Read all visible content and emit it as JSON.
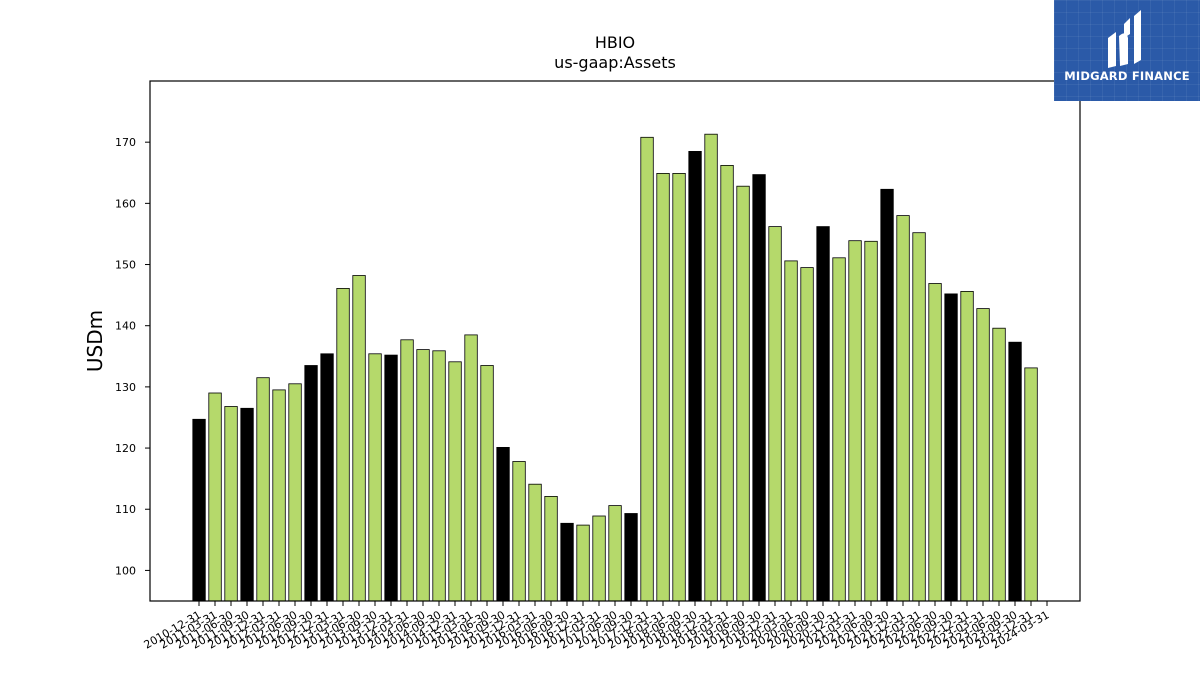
{
  "chart_data": {
    "type": "bar",
    "title": "HBIO",
    "subtitle": "us-gaap:Assets",
    "xlabel": "",
    "ylabel": "USDm",
    "ylim": [
      95,
      180
    ],
    "yticks": [
      100,
      110,
      120,
      130,
      140,
      150,
      160,
      170
    ],
    "grid": false,
    "colors": {
      "quarter": "#b5d96b",
      "year_end": "#000000",
      "edge": "#000000"
    },
    "categories": [
      "2010-12-31",
      "2011-03-31",
      "2011-06-30",
      "2011-09-30",
      "2011-12-31",
      "2012-03-31",
      "2012-06-30",
      "2012-09-30",
      "2012-12-31",
      "2013-03-31",
      "2013-06-30",
      "2013-09-30",
      "2013-12-31",
      "2014-03-31",
      "2014-06-30",
      "2014-09-30",
      "2014-12-31",
      "2015-03-31",
      "2015-06-30",
      "2015-09-30",
      "2015-12-31",
      "2016-03-31",
      "2016-06-30",
      "2016-09-30",
      "2016-12-31",
      "2017-03-31",
      "2017-06-30",
      "2017-09-30",
      "2017-12-31",
      "2018-03-31",
      "2018-06-30",
      "2018-09-30",
      "2018-12-31",
      "2019-03-31",
      "2019-06-30",
      "2019-09-30",
      "2019-12-31",
      "2020-03-31",
      "2020-06-30",
      "2020-09-30",
      "2020-12-31",
      "2021-03-31",
      "2021-06-30",
      "2021-09-30",
      "2021-12-31",
      "2022-03-31",
      "2022-06-30",
      "2022-09-30",
      "2022-12-31",
      "2023-03-31",
      "2023-06-30",
      "2023-09-30",
      "2023-12-31",
      "2024-03-31"
    ],
    "values": [
      124.7,
      129.0,
      126.8,
      126.5,
      131.5,
      129.5,
      130.5,
      133.5,
      135.4,
      146.1,
      148.2,
      135.4,
      135.2,
      137.7,
      136.1,
      135.9,
      134.1,
      138.5,
      133.5,
      120.1,
      117.8,
      114.1,
      112.1,
      107.7,
      107.4,
      108.9,
      110.6,
      109.3,
      170.8,
      164.9,
      164.9,
      168.5,
      171.3,
      166.2,
      162.8,
      164.7,
      156.2,
      150.6,
      149.5,
      156.2,
      151.1,
      153.9,
      153.8,
      162.3,
      158.0,
      155.2,
      146.9,
      145.2,
      145.6,
      142.8,
      139.6,
      137.3,
      133.1,
      null
    ],
    "year_end_flags": [
      1,
      0,
      0,
      1,
      0,
      0,
      0,
      1,
      1,
      0,
      0,
      0,
      1,
      0,
      0,
      0,
      0,
      0,
      0,
      1,
      0,
      0,
      0,
      1,
      0,
      0,
      0,
      1,
      0,
      0,
      0,
      1,
      0,
      0,
      0,
      1,
      0,
      0,
      0,
      1,
      0,
      0,
      0,
      1,
      0,
      0,
      0,
      1,
      0,
      0,
      0,
      1,
      0,
      0
    ]
  },
  "logo": {
    "text": "MIDGARD FINANCE",
    "icon": "midgard-logo-icon"
  }
}
